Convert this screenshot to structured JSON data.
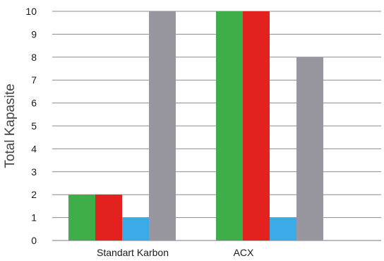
{
  "chart_data": {
    "type": "bar",
    "title": "",
    "xlabel": "",
    "ylabel": "Total Kapasite",
    "ylim": [
      0,
      10
    ],
    "yticks": [
      0,
      1,
      2,
      3,
      4,
      5,
      6,
      7,
      8,
      9,
      10
    ],
    "grid": true,
    "legend": "none",
    "categories": [
      "Standart Karbon",
      "ACX"
    ],
    "series": [
      {
        "color": "#3fae49",
        "values": [
          2,
          10
        ]
      },
      {
        "color": "#e3221f",
        "values": [
          2,
          10
        ]
      },
      {
        "color": "#3aabe6",
        "values": [
          1,
          1
        ]
      },
      {
        "color": "#98979f",
        "values": [
          10,
          8
        ]
      }
    ]
  }
}
